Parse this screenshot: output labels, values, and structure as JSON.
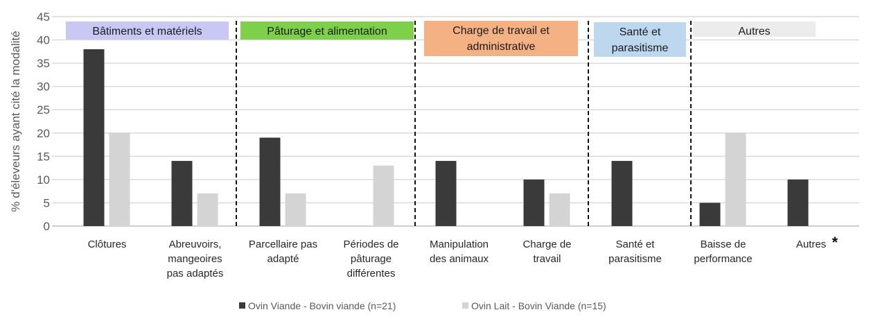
{
  "chart_data": {
    "type": "bar",
    "title": "",
    "xlabel": "",
    "ylabel": "% d'éleveurs ayant cité la modalité",
    "ylim": [
      0,
      45
    ],
    "yticks": [
      "0",
      "5",
      "10",
      "15",
      "20",
      "25",
      "30",
      "35",
      "40",
      "45"
    ],
    "grid": true,
    "legend_position": "bottom",
    "categories": [
      "Clôtures",
      "Abreuvoirs,\nmangeoires\npas adaptés",
      "Parcellaire pas\nadapté",
      "Périodes de\npâturage\ndifférentes",
      "Manipulation\ndes animaux",
      "Charge de\ntravail",
      "Santé et\nparasitisme",
      "Baisse de\nperformance",
      "Autres"
    ],
    "annotation": "*",
    "series": [
      {
        "name": "Ovin Viande - Bovin viande (n=21)",
        "color": "#3a3a3a",
        "values": [
          38,
          14,
          19,
          0,
          14,
          10,
          14,
          5,
          10
        ]
      },
      {
        "name": "Ovin Lait - Bovin Viande (n=15)",
        "color": "#d4d4d4",
        "values": [
          20,
          7,
          7,
          13,
          0,
          7,
          0,
          20,
          0
        ]
      }
    ],
    "groups": [
      {
        "label": "Bâtiments et matériels",
        "color": "#c9c8f5",
        "categories": 2
      },
      {
        "label": "Pâturage et alimentation",
        "color": "#7ed04a",
        "categories": 2
      },
      {
        "label": "Charge de travail et\nadministrative",
        "color": "#f4b183",
        "categories": 2
      },
      {
        "label": "Santé et\nparasitisme",
        "color": "#bdd7ee",
        "categories": 1
      },
      {
        "label": "Autres",
        "color": "#ececec",
        "categories": 2
      }
    ]
  }
}
